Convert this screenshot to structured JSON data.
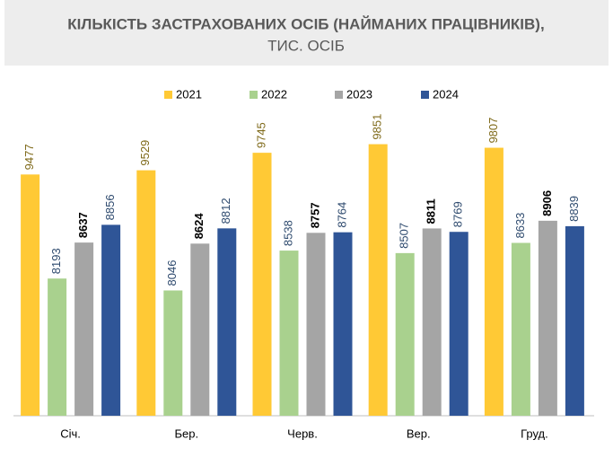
{
  "chart_data": {
    "type": "bar",
    "title": "КІЛЬКІСТЬ ЗАСТРАХОВАНИХ ОСІБ (НАЙМАНИХ ПРАЦІВНИКІВ),",
    "subtitle": "ТИС. ОСІБ",
    "categories": [
      "Січ.",
      "Бер.",
      "Черв.",
      "Вер.",
      "Груд."
    ],
    "series": [
      {
        "name": "2021",
        "color": "#ffc935",
        "label_color": "#7f6a1a",
        "values": [
          9477,
          9529,
          9745,
          9851,
          9807
        ]
      },
      {
        "name": "2022",
        "color": "#a9d18e",
        "label_color": "#2e4a6e",
        "values": [
          8193,
          8046,
          8538,
          8507,
          8633
        ]
      },
      {
        "name": "2023",
        "color": "#a5a5a5",
        "label_color": "#000000",
        "values": [
          8637,
          8624,
          8757,
          8811,
          8906
        ]
      },
      {
        "name": "2024",
        "color": "#2f5597",
        "label_color": "#2e4a6e",
        "values": [
          8856,
          8812,
          8764,
          8769,
          8839
        ]
      }
    ],
    "ylim": [
      6500,
      10500
    ]
  }
}
